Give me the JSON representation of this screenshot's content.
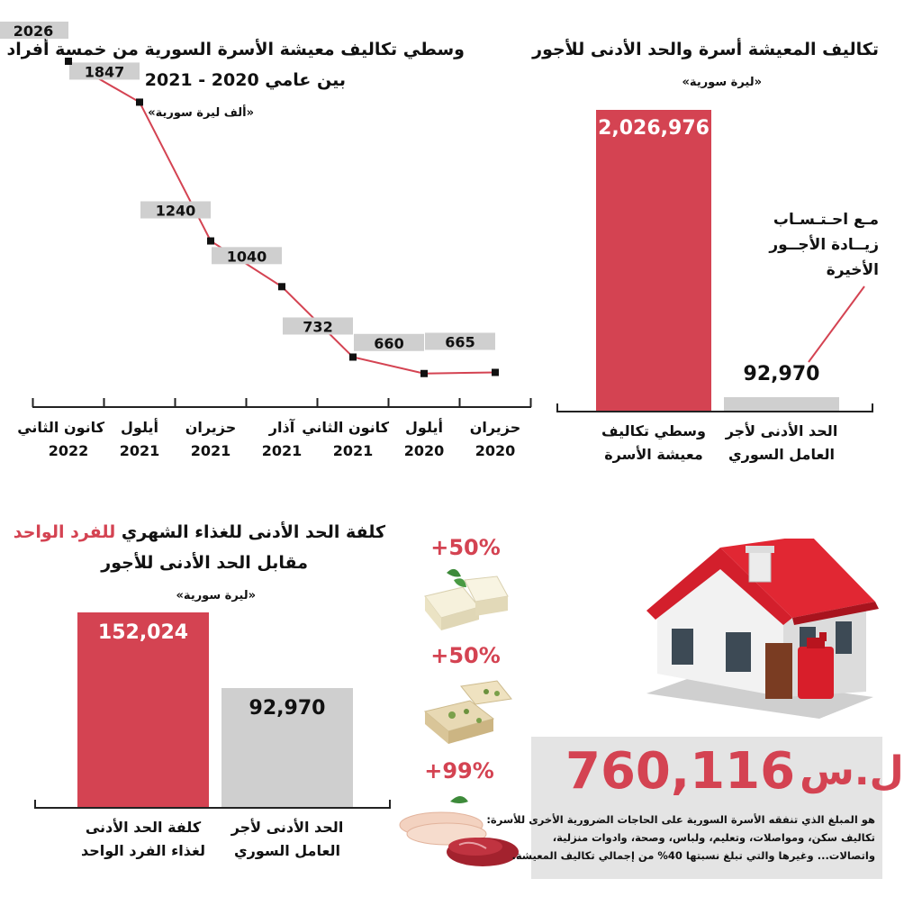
{
  "line_panel": {
    "title_line1": "وسطي تكاليف معيشة الأسرة السورية من خمسة أفراد",
    "title_line2": "بين عامي 2020 - 2021",
    "unit": "«ألف ليرة سورية»"
  },
  "wage_panel": {
    "title": "تكاليف المعيشة أسرة والحد الأدنى للأجور",
    "unit": "«ليرة سورية»",
    "note_line1": "مـع احـتـسـاب",
    "note_line2": "زيــادة الأجــور",
    "note_line3": "الأخيرة"
  },
  "food_panel": {
    "title_part1": "كلفة الحد الأدنى للغذاء الشهري",
    "title_part2": "للفرد الواحد",
    "title_line2": "مقابل الحد الأدنى للأجور",
    "unit": "«ليرة سورية»"
  },
  "food_items": [
    {
      "label": "+50%",
      "icon": "cheese-icon"
    },
    {
      "label": "+50%",
      "icon": "halva-icon"
    },
    {
      "label": "+99%",
      "icon": "meat-icon"
    }
  ],
  "house_box": {
    "amount": "760,116",
    "currency": "ل.س",
    "desc_line1": "هو المبلغ الذي تنفقه الأسرة السورية على الحاجات الضرورية الأخرى للأسرة:",
    "desc_line2": "تكاليف سكن، ومواصلات، وتعليم، ولباس، وصحة، وادوات منزلية،",
    "desc_line3": "واتصالات... وغيرها والتي تبلغ نسبتها 40% من إجمالي تكاليف المعيشة."
  },
  "colors": {
    "accent": "#d44352",
    "gray": "#cfcfcf",
    "box": "#e4e4e4"
  },
  "chart_data": [
    {
      "type": "line",
      "title": "وسطي تكاليف معيشة الأسرة السورية من خمسة أفراد بين عامي 2020 - 2021",
      "unit": "ألف ليرة سورية",
      "categories": [
        {
          "month": "حزيران",
          "year": "2020"
        },
        {
          "month": "أيلول",
          "year": "2020"
        },
        {
          "month": "كانون الثاني",
          "year": "2021"
        },
        {
          "month": "آذار",
          "year": "2021"
        },
        {
          "month": "حزيران",
          "year": "2021"
        },
        {
          "month": "أيلول",
          "year": "2021"
        },
        {
          "month": "كانون الثاني",
          "year": "2022"
        }
      ],
      "values": [
        665,
        660,
        732,
        1040,
        1240,
        1847,
        2026
      ],
      "ylim": [
        500,
        2100
      ]
    },
    {
      "type": "bar",
      "title": "تكاليف المعيشة أسرة والحد الأدنى للأجور",
      "unit": "ليرة سورية",
      "categories": [
        "وسطي تكاليف معيشة الأسرة",
        "الحد الأدنى لأجر العامل السوري"
      ],
      "category_lines": [
        [
          "وسطي تكاليف",
          "معيشة الأسرة"
        ],
        [
          "الحد الأدنى لأجر",
          "العامل السوري"
        ]
      ],
      "values": [
        2026976,
        92970
      ],
      "value_labels": [
        "2,026,976",
        "92,970"
      ],
      "colors": [
        "#d44352",
        "#cfcfcf"
      ]
    },
    {
      "type": "bar",
      "title": "كلفة الحد الأدنى للغذاء الشهري للفرد الواحد مقابل الحد الأدنى للأجور",
      "unit": "ليرة سورية",
      "categories": [
        "كلفة الحد الأدنى لغذاء الفرد الواحد",
        "الحد الأدنى لأجر العامل السوري"
      ],
      "category_lines": [
        [
          "كلفة  الحد  الأدنى",
          "لغذاء الفرد الواحد"
        ],
        [
          "الحد  الأدنى  لأجر",
          "العامل السوري"
        ]
      ],
      "values": [
        152024,
        92970
      ],
      "value_labels": [
        "152,024",
        "92,970"
      ],
      "colors": [
        "#d44352",
        "#cfcfcf"
      ]
    }
  ]
}
